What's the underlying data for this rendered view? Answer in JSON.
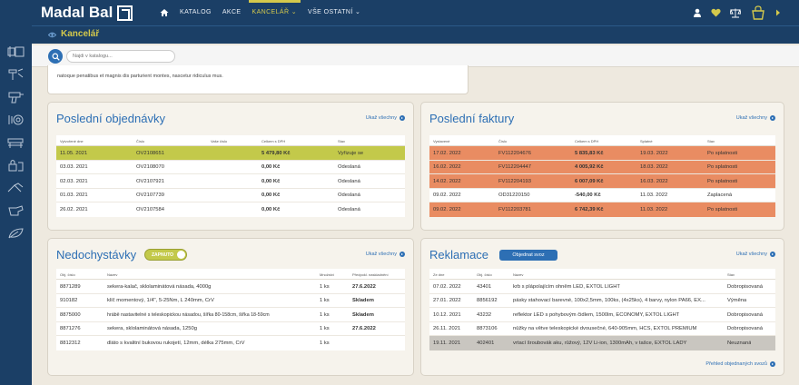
{
  "brand": {
    "name": "Madal Bal"
  },
  "nav": [
    {
      "label": "KATALOG"
    },
    {
      "label": "AKCE"
    },
    {
      "label": "KANCELÁŘ ⌄"
    },
    {
      "label": "VŠE OSTATNÍ ⌄"
    }
  ],
  "page": {
    "title": "Kancelář"
  },
  "search": {
    "placeholder": "Najdi v katalogu..."
  },
  "news": {
    "text": "natoque penatibus et magnis dis parturient montes, nascetur ridiculus mus."
  },
  "orders": {
    "title": "Poslední objednávky",
    "show_all": "Ukaž všechny",
    "headers": [
      "Vytvořené dne",
      "Číslo",
      "Vaše číslo",
      "Celkem s DPH",
      "Stav"
    ],
    "rows": [
      {
        "date": "11.05. 2021",
        "num": "OV2108651",
        "your": "",
        "total": "5 479,80 Kč",
        "status": "Vyřizuje se"
      },
      {
        "date": "03.03. 2021",
        "num": "OV2108070",
        "your": "",
        "total": "0,00 Kč",
        "status": "Odeslaná"
      },
      {
        "date": "02.03. 2021",
        "num": "OV2107921",
        "your": "",
        "total": "0,00 Kč",
        "status": "Odeslaná"
      },
      {
        "date": "01.03. 2021",
        "num": "OV2107739",
        "your": "",
        "total": "0,00 Kč",
        "status": "Odeslaná"
      },
      {
        "date": "26.02. 2021",
        "num": "OV2107584",
        "your": "",
        "total": "0,00 Kč",
        "status": "Odeslaná"
      }
    ]
  },
  "invoices": {
    "title": "Poslední faktury",
    "show_all": "Ukaž všechny",
    "headers": [
      "Vystavené",
      "Číslo",
      "Celkem s DPH",
      "Splatné",
      "Stav"
    ],
    "rows": [
      {
        "date": "17.02. 2022",
        "num": "FV112204676",
        "total": "5 835,83 Kč",
        "due": "19.03. 2022",
        "status": "Po splatnosti"
      },
      {
        "date": "16.02. 2022",
        "num": "FV112204447",
        "total": "4 005,92 Kč",
        "due": "18.03. 2022",
        "status": "Po splatnosti"
      },
      {
        "date": "14.02. 2022",
        "num": "FV112204193",
        "total": "6 007,09 Kč",
        "due": "16.03. 2022",
        "status": "Po splatnosti"
      },
      {
        "date": "09.02. 2022",
        "num": "OD31220150",
        "total": "-540,00 Kč",
        "due": "11.03. 2022",
        "status": "Zaplacená"
      },
      {
        "date": "09.02. 2022",
        "num": "FV112203781",
        "total": "6 742,39 Kč",
        "due": "11.03. 2022",
        "status": "Po splatnosti"
      }
    ]
  },
  "backorders": {
    "title": "Nedochystávky",
    "toggle_label": "ZAPNUTO",
    "show_all": "Ukaž všechny",
    "headers": [
      "Obj. číslo",
      "Název",
      "Množství",
      "Předpokl. naskladnění"
    ],
    "rows": [
      {
        "code": "8871289",
        "name": "sekera-kalač, sklolaminátová násada, 4000g",
        "qty": "1 ks",
        "eta": "27.6.2022"
      },
      {
        "code": "910182",
        "name": "klíč momentový, 1/4\", 5-25Nm, L 240mm, CrV",
        "qty": "1 ks",
        "eta": "Skladem"
      },
      {
        "code": "8875000",
        "name": "hrábě nastavitelné s teleskopickou násadou, šířka 80-158cm, šířka 18-59cm",
        "qty": "1 ks",
        "eta": "Skladem"
      },
      {
        "code": "8871276",
        "name": "sekera, sklolaminátová násada, 1250g",
        "qty": "1 ks",
        "eta": "27.6.2022"
      },
      {
        "code": "8812312",
        "name": "dláto s kvalitní bukovou rukojetí, 12mm, délka 275mm, CrV",
        "qty": "1 ks",
        "eta": ""
      }
    ]
  },
  "complaints": {
    "title": "Reklamace",
    "order_btn": "Objednat svoz",
    "show_all": "Ukaž všechny",
    "headers": [
      "Ze dne",
      "Obj. číslo",
      "Název",
      "Stav"
    ],
    "rows": [
      {
        "date": "07.02. 2022",
        "code": "43401",
        "name": "krb s plápolajícím ohněm LED, EXTOL LIGHT",
        "status": "Dobropisovaná"
      },
      {
        "date": "27.01. 2022",
        "code": "8856192",
        "name": "pásky stahovací barevné, 100x2,5mm, 100ks, (4x25ks), 4 barvy, nylon PA66, EX...",
        "status": "Výměna"
      },
      {
        "date": "10.12. 2021",
        "code": "43232",
        "name": "reflektor LED s pohybovým čidlem, 1500lm, ECONOMY, EXTOL LIGHT",
        "status": "Dobropisovaná"
      },
      {
        "date": "26.11. 2021",
        "code": "8873106",
        "name": "nůžky na větve teleskopické dvousečné, 640-905mm, HCS, EXTOL PREMIUM",
        "status": "Dobropisovaná"
      },
      {
        "date": "19.11. 2021",
        "code": "402401",
        "name": "vrtací šroubovák aku, růžový, 12V Li-ion, 1300mAh, v tašce, EXTOL LADY",
        "status": "Neuznaná"
      }
    ],
    "footer_link": "Přehled objednaných svozů"
  },
  "colors": {
    "navy": "#1b3f66",
    "accent_yellow": "#d4c94c",
    "link_blue": "#2d6fb4",
    "row_green": "#c3c94a",
    "row_overdue": "#e98c62",
    "row_grey": "#c9c6c0"
  }
}
